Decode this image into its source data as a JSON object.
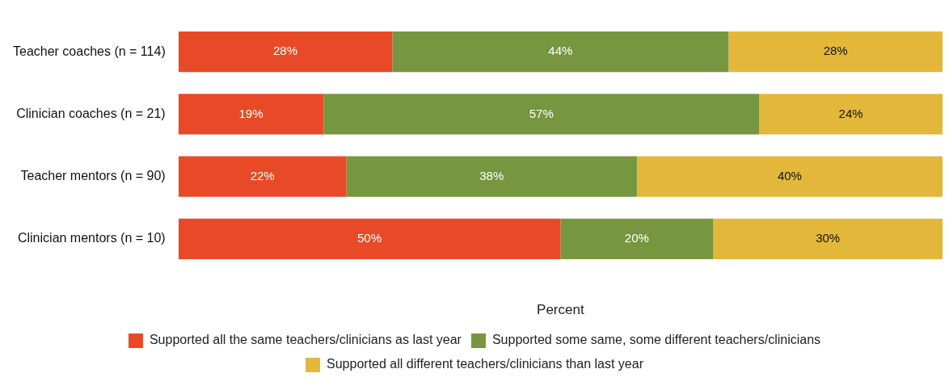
{
  "chart_data": {
    "type": "bar",
    "orientation": "horizontal",
    "stacked": true,
    "xlabel": "Percent",
    "categories": [
      "Teacher coaches (n = 114)",
      "Clinician coaches (n = 21)",
      "Teacher mentors (n = 90)",
      "Clinician mentors (n = 10)"
    ],
    "series": [
      {
        "name": "Supported all the same teachers/clinicians as last year",
        "color": "#e84a27",
        "values": [
          28,
          19,
          22,
          50
        ],
        "value_labels": [
          "28%",
          "19%",
          "22%",
          "50%"
        ]
      },
      {
        "name": "Supported some same, some different teachers/clinicians",
        "color": "#76963f",
        "values": [
          44,
          57,
          38,
          20
        ],
        "value_labels": [
          "44%",
          "57%",
          "38%",
          "20%"
        ]
      },
      {
        "name": "Supported all different teachers/clinicians than last year",
        "color": "#e3b83a",
        "values": [
          28,
          24,
          40,
          30
        ],
        "value_labels": [
          "28%",
          "24%",
          "40%",
          "30%"
        ]
      }
    ],
    "xlim": [
      0,
      100
    ],
    "tick_labels": "y",
    "grid": false,
    "legend": "bottom"
  }
}
